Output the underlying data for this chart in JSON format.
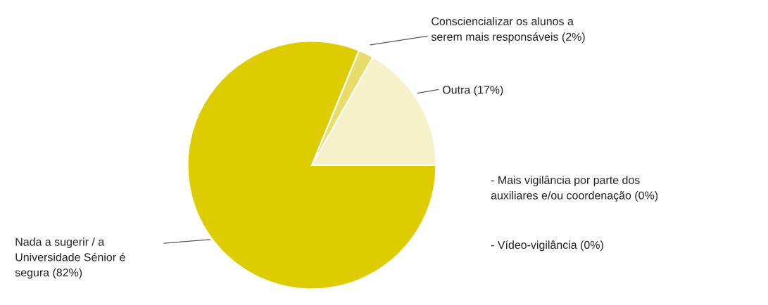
{
  "chart_data": {
    "type": "pie",
    "categories": [
      "Outra (17%)",
      "Consciencializar os alunos a\nserem mais responsáveis (2%)",
      "Nada a sugerir / a\nUniversidade Sénior é\nsegura (82%)",
      "- Mais vigilância por parte dos\nauxiliares e/ou coordenação (0%)",
      "- Vídeo-vigilância (0%)"
    ],
    "values": [
      17,
      2,
      82,
      0,
      0
    ],
    "colors": [
      "#f6f1c8",
      "#e8dc6a",
      "#dccc00",
      "#c8b800",
      "#b0a000"
    ]
  }
}
